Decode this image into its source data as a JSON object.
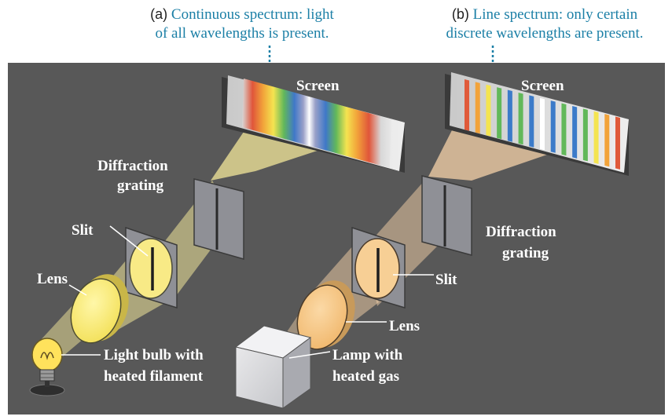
{
  "panel_a": {
    "letter": "(a)",
    "caption_line1": "Continuous spectrum: light",
    "caption_line2": "of all wavelengths is present.",
    "labels": {
      "screen": "Screen",
      "grating_1": "Diffraction",
      "grating_2": "grating",
      "slit": "Slit",
      "lens": "Lens",
      "source_1": "Light bulb with",
      "source_2": "heated filament"
    }
  },
  "panel_b": {
    "letter": "(b)",
    "caption_line1": "Line spectrum: only certain",
    "caption_line2": "discrete wavelengths are present.",
    "labels": {
      "screen": "Screen",
      "grating_1": "Diffraction",
      "grating_2": "grating",
      "slit": "Slit",
      "lens": "Lens",
      "source_1": "Lamp with",
      "source_2": "heated gas"
    }
  },
  "colors": {
    "background": "#585858",
    "caption_text": "#1b7fa6",
    "beam_a": "#f3e79a",
    "beam_b": "#f5d2a8"
  }
}
